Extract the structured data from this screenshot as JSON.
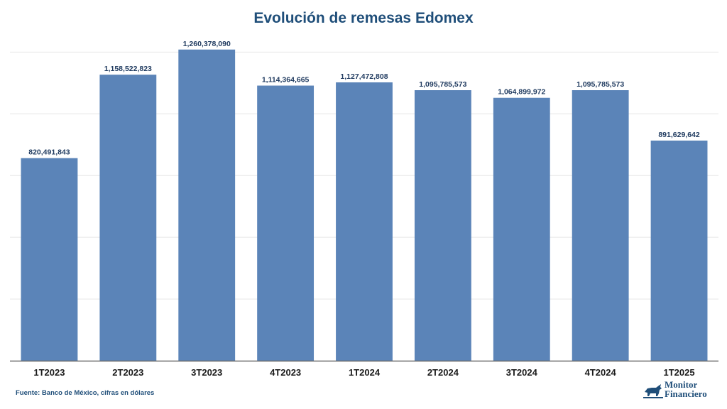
{
  "colors": {
    "bar": "#5b84b8",
    "title": "#1f4e79",
    "grid": "#e6e6e6",
    "axis": "#6b6b6b",
    "text": "#1f3a5f"
  },
  "footer": {
    "source": "Fuente: Banco de México, cifras en dólares"
  },
  "logo": {
    "text": "Monitor\nFinanciero",
    "icon": "bull-icon"
  },
  "chart_data": {
    "type": "bar",
    "title": "Evolución de remesas Edomex",
    "xlabel": "",
    "ylabel": "",
    "categories": [
      "1T2023",
      "2T2023",
      "3T2023",
      "4T2023",
      "1T2024",
      "2T2024",
      "3T2024",
      "4T2024",
      "1T2025"
    ],
    "values": [
      820491843,
      1158522823,
      1260378090,
      1114364665,
      1127472808,
      1095785573,
      1064899972,
      1095785573,
      891629642
    ],
    "value_labels": [
      "820,491,843",
      "1,158,522,823",
      "1,260,378,090",
      "1,114,364,665",
      "1,127,472,808",
      "1,095,785,573",
      "1,064,899,972",
      "1,095,785,573",
      "891,629,642"
    ],
    "ylim": [
      0,
      1300000000
    ],
    "grid": true,
    "legend": "none"
  }
}
